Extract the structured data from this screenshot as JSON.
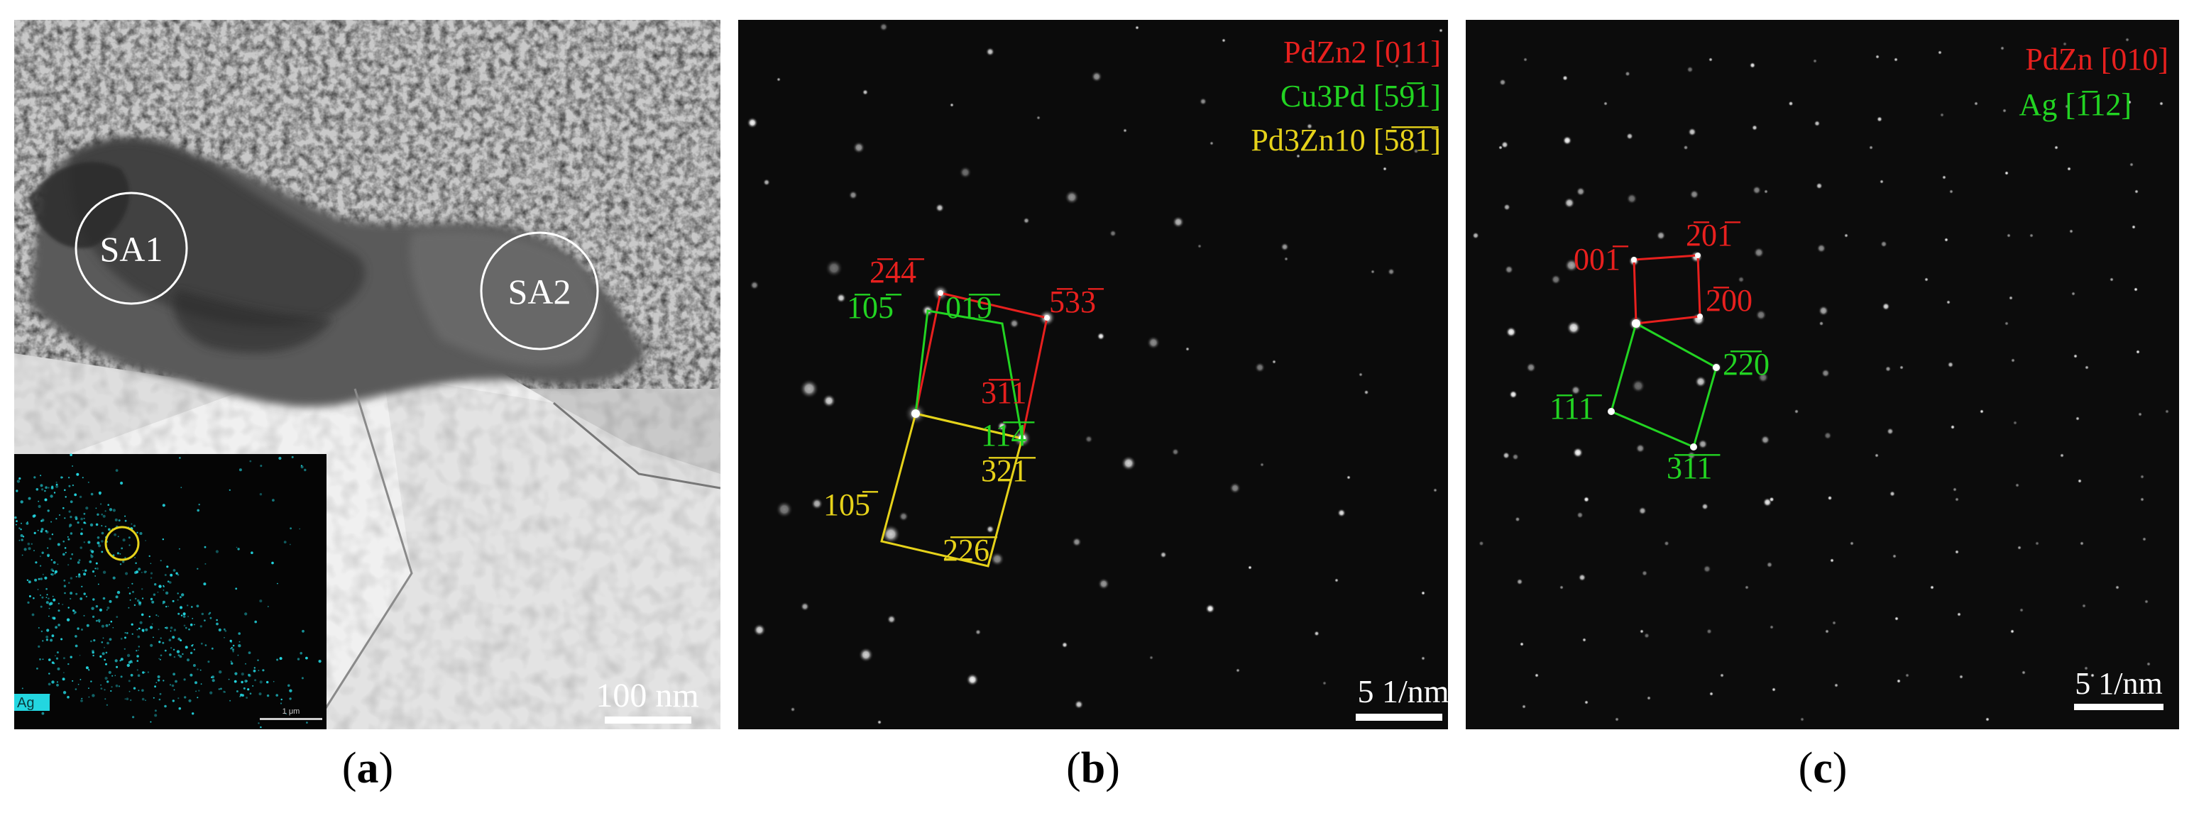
{
  "colors": {
    "red": "#e8201e",
    "green": "#22d422",
    "yellow": "#e6d21a",
    "cyan": "#23d6e0",
    "white": "#ffffff"
  },
  "panel_a": {
    "caption_open": "(",
    "caption_letter": "a",
    "caption_close": ")",
    "regions": [
      "SA1",
      "SA2"
    ],
    "scale_bar": "100 nm",
    "inset": {
      "element_label": "Ag",
      "scale_label": "1 μm"
    }
  },
  "panel_b": {
    "caption_open": "(",
    "caption_letter": "b",
    "caption_close": ")",
    "legend": [
      {
        "text": "PdZn2 [011]",
        "color": "red"
      },
      {
        "text": "Cu3Pd [59̅1]",
        "color": "green"
      },
      {
        "text": "Pd3Zn10 [5̅8̅1̅]",
        "color": "yellow"
      }
    ],
    "spot_labels": [
      {
        "text": "2̅44̅",
        "color": "red"
      },
      {
        "text": "5̅33̅",
        "color": "red"
      },
      {
        "text": "3̅1̅1",
        "color": "red"
      },
      {
        "text": "1̅05̅",
        "color": "green"
      },
      {
        "text": "01̅9̅",
        "color": "green"
      },
      {
        "text": "11̅4̅",
        "color": "green"
      },
      {
        "text": "3̅2̅1̅",
        "color": "yellow"
      },
      {
        "text": "105̅",
        "color": "yellow"
      },
      {
        "text": "2̅2̅6̅",
        "color": "yellow"
      }
    ],
    "scale_bar": "5 1/nm"
  },
  "panel_c": {
    "caption_open": "(",
    "caption_letter": "c",
    "caption_close": ")",
    "legend": [
      {
        "text": "PdZn [010]",
        "color": "red"
      },
      {
        "text": "Ag [1̅12]",
        "color": "green"
      }
    ],
    "spot_labels": [
      {
        "text": "001̅",
        "color": "red"
      },
      {
        "text": "2̅01̅",
        "color": "red"
      },
      {
        "text": "2̅00",
        "color": "red"
      },
      {
        "text": "2̅2̅0",
        "color": "green"
      },
      {
        "text": "1̅11̅",
        "color": "green"
      },
      {
        "text": "3̅1̅1̅",
        "color": "green"
      }
    ],
    "scale_bar": "5 1/nm"
  }
}
